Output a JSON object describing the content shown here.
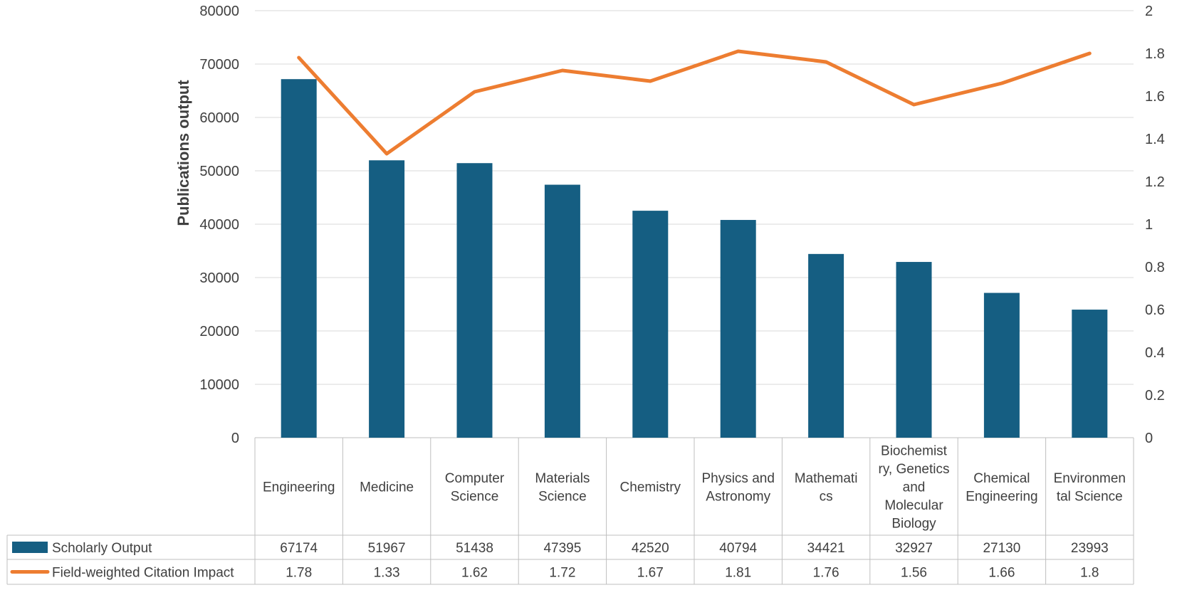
{
  "chart_data": {
    "type": "bar",
    "categories": [
      [
        "Engineering"
      ],
      [
        "Medicine"
      ],
      [
        "Computer",
        "Science"
      ],
      [
        "Materials",
        "Science"
      ],
      [
        "Chemistry"
      ],
      [
        "Physics and",
        "Astronomy"
      ],
      [
        "Mathemati",
        "cs"
      ],
      [
        "Biochemist",
        "ry, Genetics",
        "and",
        "Molecular",
        "Biology"
      ],
      [
        "Chemical",
        "Engineering"
      ],
      [
        "Environmen",
        "tal Science"
      ]
    ],
    "series": [
      {
        "name": "Scholarly Output",
        "type": "bar",
        "axis": "left",
        "color": "#155e82",
        "values": [
          67174,
          51967,
          51438,
          47395,
          42520,
          40794,
          34421,
          32927,
          27130,
          23993
        ]
      },
      {
        "name": "Field-weighted Citation Impact",
        "type": "line",
        "axis": "right",
        "color": "#ed7d31",
        "values": [
          1.78,
          1.33,
          1.62,
          1.72,
          1.67,
          1.81,
          1.76,
          1.56,
          1.66,
          1.8
        ]
      }
    ],
    "ylabel": "Publications output",
    "ylim": [
      0,
      80000
    ],
    "yticks": [
      0,
      10000,
      20000,
      30000,
      40000,
      50000,
      60000,
      70000,
      80000
    ],
    "y2lim": [
      0,
      2
    ],
    "y2ticks": [
      "0",
      "0.2",
      "0.4",
      "0.6",
      "0.8",
      "1",
      "1.2",
      "1.4",
      "1.6",
      "1.8",
      "2"
    ],
    "grid": true,
    "legend": "data-table",
    "data_table": true
  }
}
